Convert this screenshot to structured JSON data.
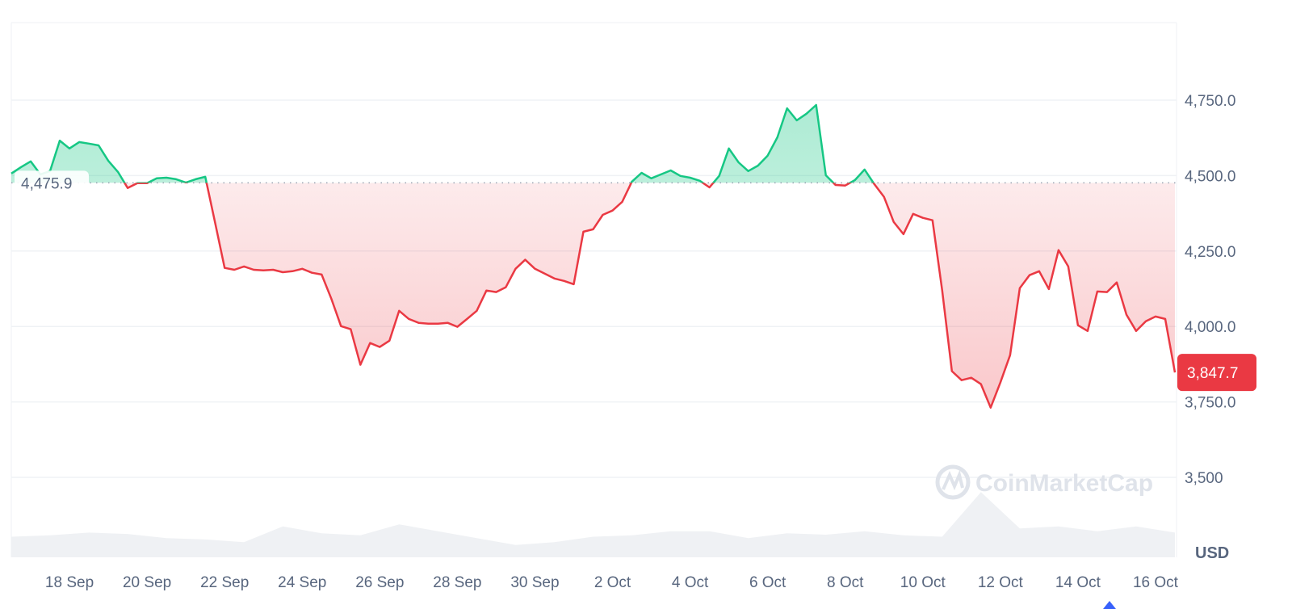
{
  "chart_data": {
    "type": "line",
    "currency_label": "USD",
    "watermark": "CoinMarketCap",
    "baseline": {
      "value": 4475.9,
      "label": "4,475.9"
    },
    "current": {
      "value": 3847.7,
      "label": "3,847.7"
    },
    "colors": {
      "above": "#16c784",
      "below": "#ea3943",
      "grid": "#eff2f5",
      "volume": "#eff1f4",
      "text": "#58667e",
      "marker": "#3861fb"
    },
    "ylim": [
      3400,
      4850
    ],
    "y_ticks": [
      {
        "value": 4750,
        "label": "4,750.0"
      },
      {
        "value": 4500,
        "label": "4,500.0"
      },
      {
        "value": 4250,
        "label": "4,250.0"
      },
      {
        "value": 4000,
        "label": "4,000.0"
      },
      {
        "value": 3750,
        "label": "3,750.0"
      },
      {
        "value": 3500,
        "label": "3,500"
      }
    ],
    "x_ticks": [
      "18 Sep",
      "20 Sep",
      "22 Sep",
      "24 Sep",
      "26 Sep",
      "28 Sep",
      "30 Sep",
      "2 Oct",
      "4 Oct",
      "6 Oct",
      "8 Oct",
      "10 Oct",
      "12 Oct",
      "14 Oct",
      "16 Oct"
    ],
    "x": [
      "16 Sep 12:00",
      "16 Sep 18:00",
      "17 Sep 00:00",
      "17 Sep 06:00",
      "17 Sep 12:00",
      "17 Sep 18:00",
      "18 Sep 00:00",
      "18 Sep 06:00",
      "18 Sep 12:00",
      "18 Sep 18:00",
      "19 Sep 00:00",
      "19 Sep 06:00",
      "19 Sep 12:00",
      "19 Sep 18:00",
      "20 Sep 00:00",
      "20 Sep 06:00",
      "20 Sep 12:00",
      "20 Sep 18:00",
      "21 Sep 00:00",
      "21 Sep 06:00",
      "21 Sep 12:00",
      "21 Sep 18:00",
      "22 Sep 00:00",
      "22 Sep 06:00",
      "22 Sep 12:00",
      "22 Sep 18:00",
      "23 Sep 00:00",
      "23 Sep 06:00",
      "23 Sep 12:00",
      "23 Sep 18:00",
      "24 Sep 00:00",
      "24 Sep 06:00",
      "24 Sep 12:00",
      "24 Sep 18:00",
      "25 Sep 00:00",
      "25 Sep 06:00",
      "25 Sep 12:00",
      "25 Sep 18:00",
      "26 Sep 00:00",
      "26 Sep 06:00",
      "26 Sep 12:00",
      "26 Sep 18:00",
      "27 Sep 00:00",
      "27 Sep 06:00",
      "27 Sep 12:00",
      "27 Sep 18:00",
      "28 Sep 00:00",
      "28 Sep 06:00",
      "28 Sep 12:00",
      "28 Sep 18:00",
      "29 Sep 00:00",
      "29 Sep 06:00",
      "29 Sep 12:00",
      "29 Sep 18:00",
      "30 Sep 00:00",
      "30 Sep 06:00",
      "30 Sep 12:00",
      "30 Sep 18:00",
      "1 Oct 00:00",
      "1 Oct 06:00",
      "1 Oct 12:00",
      "1 Oct 18:00",
      "2 Oct 00:00",
      "2 Oct 06:00",
      "2 Oct 12:00",
      "2 Oct 18:00",
      "3 Oct 00:00",
      "3 Oct 06:00",
      "3 Oct 12:00",
      "3 Oct 18:00",
      "4 Oct 00:00",
      "4 Oct 06:00",
      "4 Oct 12:00",
      "4 Oct 18:00",
      "5 Oct 00:00",
      "5 Oct 06:00",
      "5 Oct 12:00",
      "5 Oct 18:00",
      "6 Oct 00:00",
      "6 Oct 06:00",
      "6 Oct 12:00",
      "6 Oct 18:00",
      "7 Oct 00:00",
      "7 Oct 06:00",
      "7 Oct 12:00",
      "7 Oct 18:00",
      "8 Oct 00:00",
      "8 Oct 06:00",
      "8 Oct 12:00",
      "8 Oct 18:00",
      "9 Oct 00:00",
      "9 Oct 06:00",
      "9 Oct 12:00",
      "9 Oct 18:00",
      "10 Oct 00:00",
      "10 Oct 06:00",
      "10 Oct 12:00",
      "10 Oct 18:00",
      "11 Oct 00:00",
      "11 Oct 06:00",
      "11 Oct 12:00",
      "11 Oct 18:00",
      "12 Oct 00:00",
      "12 Oct 06:00",
      "12 Oct 12:00",
      "12 Oct 18:00",
      "13 Oct 00:00",
      "13 Oct 06:00",
      "13 Oct 12:00",
      "13 Oct 18:00",
      "14 Oct 00:00",
      "14 Oct 06:00",
      "14 Oct 12:00",
      "14 Oct 18:00",
      "15 Oct 00:00",
      "15 Oct 06:00",
      "15 Oct 12:00",
      "15 Oct 18:00",
      "16 Oct 00:00",
      "16 Oct 06:00",
      "16 Oct 12:00"
    ],
    "series": [
      {
        "values": [
          4507,
          4528,
          4547,
          4504,
          4515,
          4616,
          4590,
          4611,
          4606,
          4600,
          4549,
          4512,
          4459,
          4475,
          4475,
          4491,
          4493,
          4488,
          4477,
          4488,
          4496,
          4346,
          4194,
          4188,
          4199,
          4188,
          4186,
          4188,
          4180,
          4183,
          4191,
          4178,
          4172,
          4092,
          4001,
          3991,
          3873,
          3945,
          3932,
          3953,
          4052,
          4025,
          4012,
          4009,
          4009,
          4012,
          3999,
          4025,
          4052,
          4119,
          4114,
          4130,
          4191,
          4221,
          4191,
          4175,
          4159,
          4151,
          4140,
          4314,
          4322,
          4370,
          4384,
          4413,
          4480,
          4509,
          4491,
          4504,
          4517,
          4499,
          4493,
          4483,
          4461,
          4499,
          4590,
          4544,
          4515,
          4533,
          4566,
          4627,
          4723,
          4683,
          4705,
          4734,
          4501,
          4469,
          4467,
          4485,
          4520,
          4472,
          4429,
          4346,
          4306,
          4373,
          4360,
          4352,
          4119,
          3852,
          3822,
          3830,
          3809,
          3731,
          3814,
          3905,
          4127,
          4170,
          4183,
          4124,
          4253,
          4199,
          4004,
          3985,
          4116,
          4114,
          4146,
          4039,
          3985,
          4017,
          4033,
          4025,
          3847.7
        ]
      }
    ],
    "volume_relative": [
      0.3,
      0.32,
      0.36,
      0.34,
      0.28,
      0.26,
      0.22,
      0.45,
      0.35,
      0.32,
      0.48,
      0.38,
      0.28,
      0.18,
      0.22,
      0.3,
      0.32,
      0.38,
      0.38,
      0.28,
      0.35,
      0.33,
      0.38,
      0.32,
      0.3,
      0.95,
      0.42,
      0.45,
      0.38,
      0.45,
      0.36
    ]
  }
}
